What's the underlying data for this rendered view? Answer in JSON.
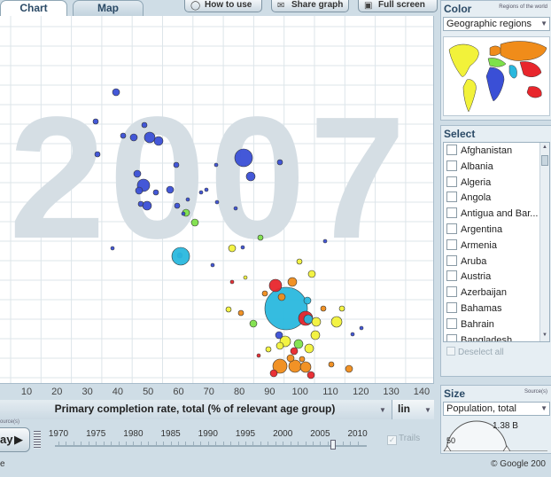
{
  "tabs": {
    "chart": "Chart",
    "map": "Map"
  },
  "toolbar": {
    "how_to_use": "How to use",
    "share_graph": "Share graph",
    "full_screen": "Full screen"
  },
  "chart": {
    "year": "2007",
    "x_ticks": [
      "10",
      "20",
      "30",
      "40",
      "50",
      "60",
      "70",
      "80",
      "90",
      "100",
      "110",
      "120",
      "130",
      "140"
    ],
    "x_label": "Primary completion rate, total (% of relevant age group)",
    "scale": "lin"
  },
  "timeline": {
    "play_label": "ay",
    "years": [
      "1970",
      "1975",
      "1980",
      "1985",
      "1990",
      "1995",
      "2000",
      "2005",
      "2010"
    ],
    "current_year": 2007,
    "trails_label": "Trails",
    "sources_label": "ource(s)"
  },
  "color_panel": {
    "title": "Color",
    "info": "Regions of the world",
    "selected": "Geographic regions"
  },
  "select_panel": {
    "title": "Select",
    "countries": [
      "Afghanistan",
      "Albania",
      "Algeria",
      "Angola",
      "Antigua and Bar...",
      "Argentina",
      "Armenia",
      "Aruba",
      "Austria",
      "Azerbaijan",
      "Bahamas",
      "Bahrain",
      "Bangladesh"
    ],
    "deselect_all": "Deselect all"
  },
  "size_panel": {
    "title": "Size",
    "info": "Source(s)",
    "selected": "Population, total",
    "max_value": "1.38 B",
    "min_value": "50"
  },
  "footer": {
    "left_text": "e",
    "copyright": "© Google 200"
  },
  "region_colors": {
    "sub_saharan_africa": "#3a4fd6",
    "south_asia": "#2ab8de",
    "middle_east_north_africa": "#7ee04a",
    "america": "#f2f23a",
    "east_asia_pacific": "#e8262c",
    "europe_central_asia": "#f08c1a"
  }
}
